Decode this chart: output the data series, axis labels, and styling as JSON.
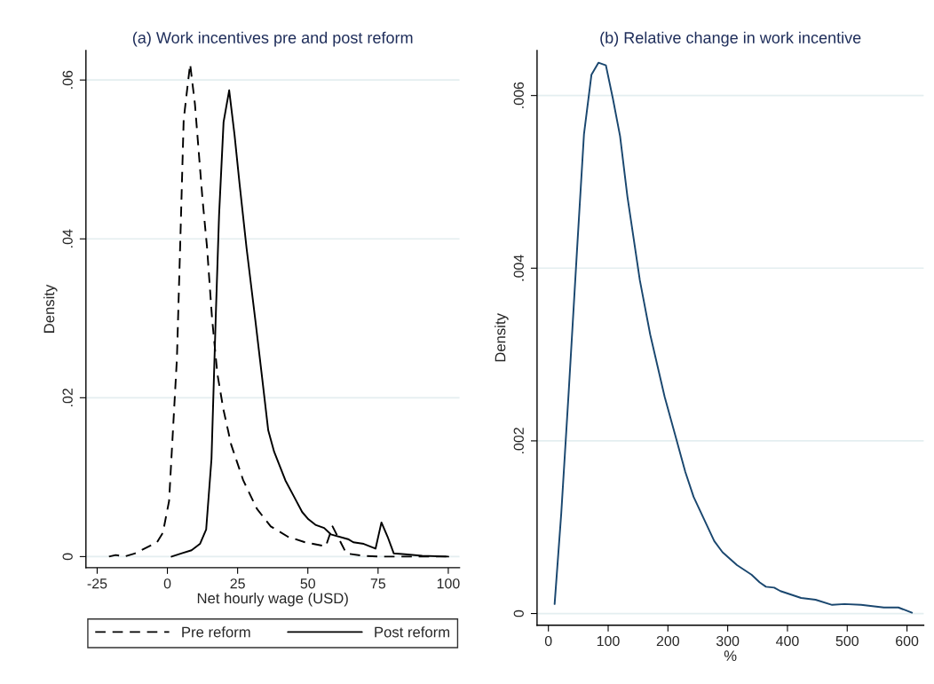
{
  "chart_data": [
    {
      "type": "line",
      "title": "(a) Work incentives pre and post reform",
      "xlabel": "Net hourly wage (USD)",
      "ylabel": "Density",
      "xlim": [
        -29,
        104
      ],
      "ylim": [
        -0.0014,
        0.0637
      ],
      "xticks": [
        -25,
        0,
        25,
        50,
        75,
        100
      ],
      "yticks": [
        0,
        {
          "value": 0.02,
          "label": ".02"
        },
        {
          "value": 0.04,
          "label": ".04"
        },
        {
          "value": 0.06,
          "label": ".06"
        }
      ],
      "grid": "y",
      "legend": "bottom",
      "marker": "none",
      "series": [
        {
          "name": "Pre reform",
          "color": "#000000",
          "line_style": "dashed",
          "x": [
            -20.8,
            -18.4,
            -15.3,
            -11.6,
            -3.7,
            -1.6,
            0.6,
            3.4,
            4.7,
            5.8,
            7.1,
            8.1,
            9.8,
            12.5,
            14.1,
            15.9,
            17.8,
            19.9,
            22.7,
            27,
            31.9,
            36.8,
            42.9,
            49,
            56.4,
            58.8,
            63.7,
            69.9,
            76,
            84.6,
            100
          ],
          "values": [
            0,
            0.0002,
            0,
            0.0004,
            0.0018,
            0.003,
            0.007,
            0.025,
            0.041,
            0.055,
            0.059,
            0.062,
            0.057,
            0.045,
            0.039,
            0.03,
            0.023,
            0.0186,
            0.0141,
            0.0096,
            0.006,
            0.0038,
            0.0025,
            0.0018,
            0.0013,
            0.0038,
            0.0004,
            0.0001,
            0,
            0,
            0
          ]
        },
        {
          "name": "Post reform",
          "color": "#000000",
          "line_style": "solid",
          "x": [
            1.5,
            4.9,
            8.6,
            11.6,
            13.8,
            15.7,
            17.2,
            18.4,
            20,
            22,
            23.9,
            25.7,
            28.2,
            31.3,
            33.7,
            35.9,
            38,
            42,
            45.3,
            48,
            50.2,
            52.7,
            55.8,
            58.2,
            64.3,
            66.2,
            69.9,
            74.1,
            76.2,
            78.4,
            80.6,
            84.6,
            90.7,
            100
          ],
          "values": [
            0,
            0.0004,
            0.0008,
            0.0016,
            0.0034,
            0.0123,
            0.03,
            0.043,
            0.0547,
            0.0587,
            0.0531,
            0.0469,
            0.0388,
            0.0298,
            0.0226,
            0.0159,
            0.0132,
            0.0096,
            0.0074,
            0.0056,
            0.0047,
            0.004,
            0.0036,
            0.0028,
            0.0022,
            0.0018,
            0.0016,
            0.001,
            0.0043,
            0.0025,
            0.0004,
            0.0003,
            0.0001,
            0
          ]
        }
      ]
    },
    {
      "type": "line",
      "title": "(b) Relative change in work incentive",
      "xlabel": "%",
      "ylabel": "Density",
      "xlim": [
        -19,
        628
      ],
      "ylim": [
        -0.000135,
        0.00652
      ],
      "xticks": [
        0,
        100,
        200,
        300,
        400,
        500,
        600
      ],
      "yticks": [
        0,
        {
          "value": 0.002,
          "label": ".002"
        },
        {
          "value": 0.004,
          "label": ".004"
        },
        {
          "value": 0.006,
          "label": ".006"
        }
      ],
      "grid": "y",
      "marker": "none",
      "series": [
        {
          "color": "#1a476f",
          "line_style": "solid",
          "x": [
            10.4,
            21.5,
            33.9,
            47.8,
            59.5,
            72,
            83.7,
            96.2,
            108,
            119.9,
            132.2,
            153,
            170.4,
            194.5,
            229.1,
            243,
            277.5,
            291.4,
            315.6,
            339.8,
            353.6,
            364,
            377.8,
            388.2,
            422.8,
            447,
            474.7,
            495.5,
            523.2,
            561.2,
            585.5,
            608.3
          ],
          "values": [
            0.00011,
            0.00116,
            0.00256,
            0.0042,
            0.00555,
            0.00624,
            0.00638,
            0.00635,
            0.00596,
            0.00553,
            0.00483,
            0.00386,
            0.00323,
            0.00251,
            0.00164,
            0.00135,
            0.00084,
            0.00071,
            0.00056,
            0.00045,
            0.00036,
            0.00031,
            0.0003,
            0.00026,
            0.00018,
            0.00016,
            0.0001,
            0.00011,
            0.0001,
            7e-05,
            7e-05,
            1e-05
          ]
        }
      ]
    }
  ]
}
